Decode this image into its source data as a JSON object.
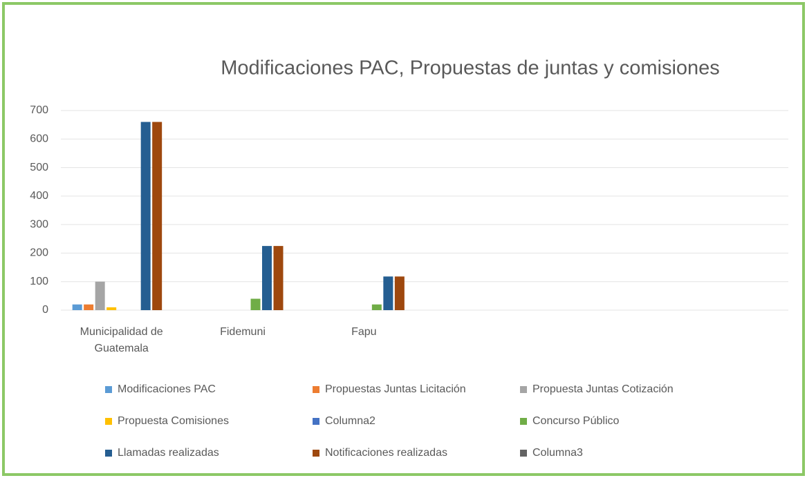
{
  "chart_data": {
    "type": "bar",
    "title": "Modificaciones PAC, Propuestas de juntas y comisiones",
    "categories": [
      "Municipalidad de Guatemala",
      "Fidemuni",
      "Fapu",
      null,
      null,
      null
    ],
    "series": [
      {
        "name": "Modificaciones PAC",
        "color": "#5b9bd5",
        "values": [
          20,
          0,
          0,
          null,
          null,
          null
        ]
      },
      {
        "name": "Propuestas Juntas Licitación",
        "color": "#ed7d31",
        "values": [
          20,
          0,
          0,
          null,
          null,
          null
        ]
      },
      {
        "name": "Propuesta Juntas Cotización",
        "color": "#a5a5a5",
        "values": [
          100,
          0,
          0,
          null,
          null,
          null
        ]
      },
      {
        "name": "Propuesta Comisiones",
        "color": "#ffc000",
        "values": [
          10,
          0,
          0,
          null,
          null,
          null
        ]
      },
      {
        "name": "Columna2",
        "color": "#4472c4",
        "values": [
          0,
          0,
          0,
          null,
          null,
          null
        ]
      },
      {
        "name": "Concurso Público",
        "color": "#70ad47",
        "values": [
          0,
          40,
          20,
          null,
          null,
          null
        ]
      },
      {
        "name": "Llamadas realizadas",
        "color": "#255e91",
        "values": [
          660,
          225,
          118,
          null,
          null,
          null
        ]
      },
      {
        "name": "Notificaciones realizadas",
        "color": "#9e480e",
        "values": [
          660,
          225,
          118,
          null,
          null,
          null
        ]
      },
      {
        "name": "Columna3",
        "color": "#636363",
        "values": [
          0,
          0,
          0,
          null,
          null,
          null
        ]
      }
    ],
    "ylim": [
      0,
      700
    ],
    "yticks": [
      0,
      100,
      200,
      300,
      400,
      500,
      600,
      700
    ],
    "grid": true
  }
}
